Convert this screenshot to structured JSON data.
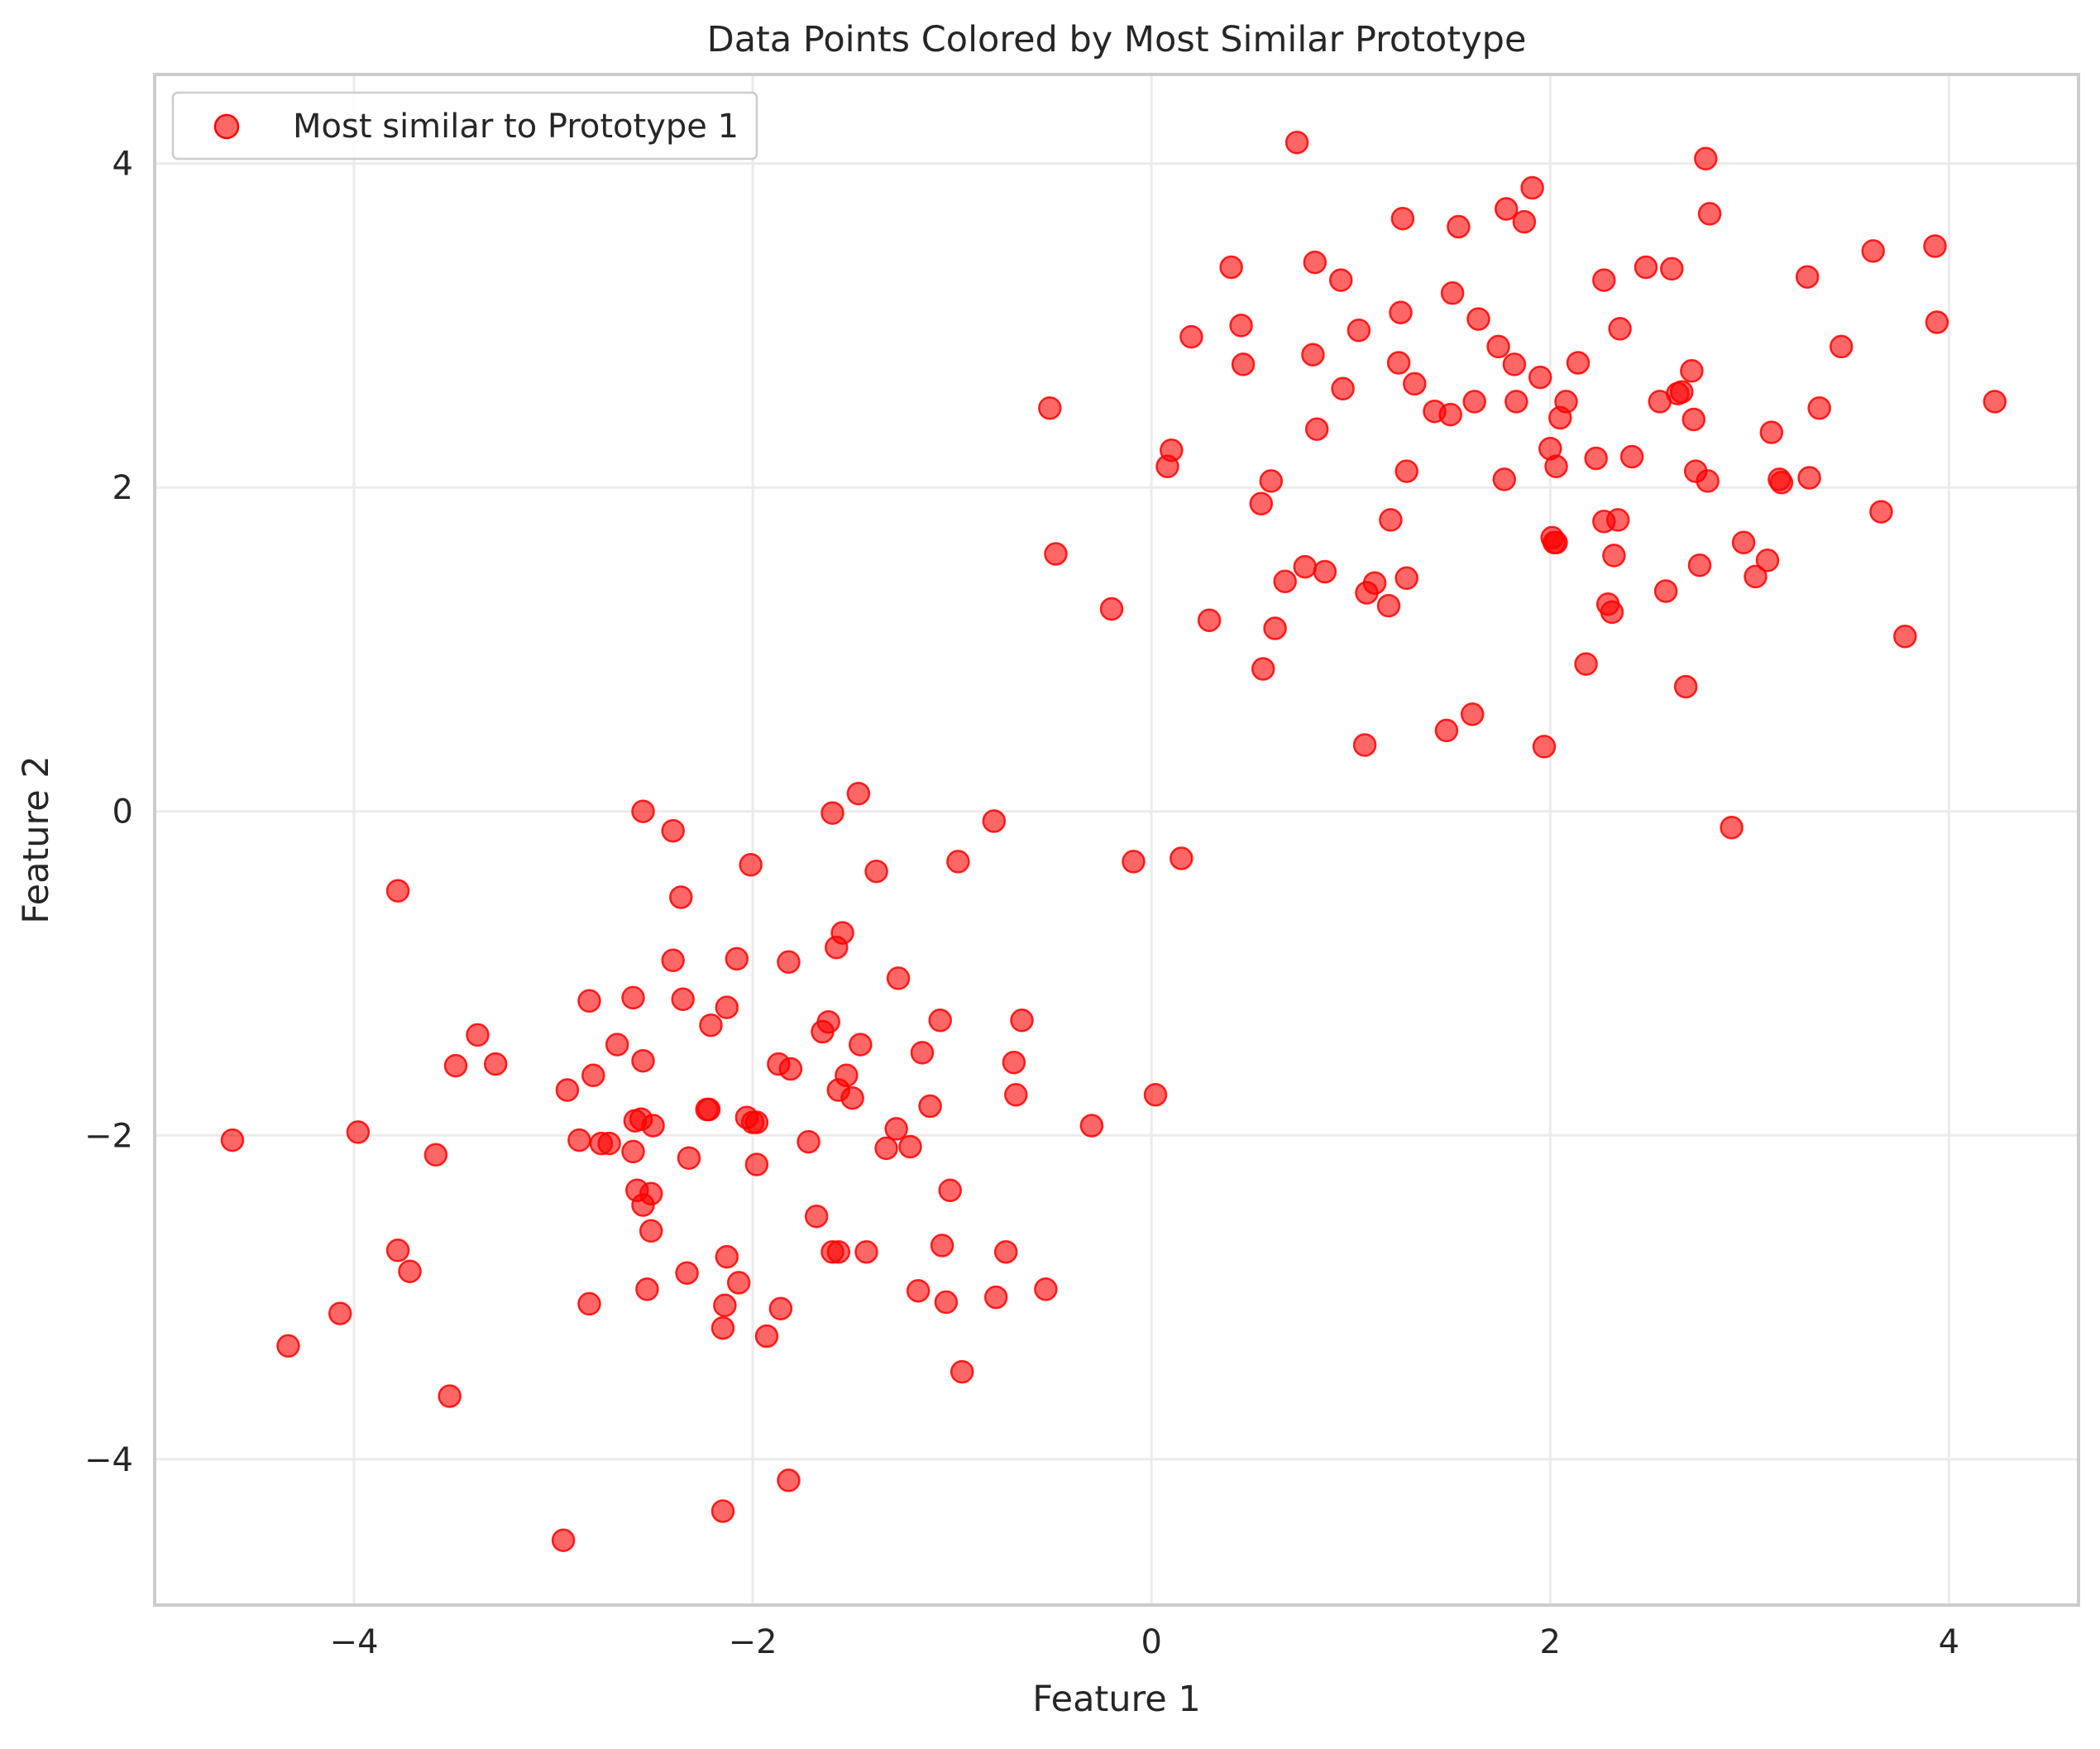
{
  "chart_data": {
    "type": "scatter",
    "title": "Data Points Colored by Most Similar Prototype",
    "xlabel": "Feature 1",
    "ylabel": "Feature 2",
    "xlim": [
      -5.0,
      4.65
    ],
    "ylim": [
      -4.9,
      4.55
    ],
    "xticks": [
      -4,
      -2,
      0,
      2,
      4
    ],
    "yticks": [
      -4,
      -2,
      0,
      2,
      4
    ],
    "grid": true,
    "legend_position": "top-left",
    "series": [
      {
        "name": "Most similar to Prototype 1",
        "color": "#ff0000",
        "points": [
          [
            -4.61,
            -2.03
          ],
          [
            -4.33,
            -3.3
          ],
          [
            -4.07,
            -3.1
          ],
          [
            -3.98,
            -1.98
          ],
          [
            -3.78,
            -0.49
          ],
          [
            -3.78,
            -2.71
          ],
          [
            -3.72,
            -2.84
          ],
          [
            -3.59,
            -2.12
          ],
          [
            -3.52,
            -3.61
          ],
          [
            -3.49,
            -1.57
          ],
          [
            -3.38,
            -1.38
          ],
          [
            -3.29,
            -1.56
          ],
          [
            -2.95,
            -4.5
          ],
          [
            -2.93,
            -1.72
          ],
          [
            -2.87,
            -2.03
          ],
          [
            -2.82,
            -1.17
          ],
          [
            -2.82,
            -3.04
          ],
          [
            -2.8,
            -1.63
          ],
          [
            -2.76,
            -2.05
          ],
          [
            -2.72,
            -2.05
          ],
          [
            -2.68,
            -1.44
          ],
          [
            -2.6,
            -1.15
          ],
          [
            -2.6,
            -2.1
          ],
          [
            -2.59,
            -1.91
          ],
          [
            -2.58,
            -2.34
          ],
          [
            -2.56,
            -1.9
          ],
          [
            -2.55,
            -2.43
          ],
          [
            -2.55,
            -1.54
          ],
          [
            -2.55,
            0.0
          ],
          [
            -2.53,
            -2.95
          ],
          [
            -2.51,
            -2.36
          ],
          [
            -2.51,
            -2.59
          ],
          [
            -2.5,
            -1.94
          ],
          [
            -2.4,
            -0.12
          ],
          [
            -2.4,
            -0.92
          ],
          [
            -2.36,
            -0.53
          ],
          [
            -2.35,
            -1.16
          ],
          [
            -2.33,
            -2.85
          ],
          [
            -2.32,
            -2.14
          ],
          [
            -2.23,
            -1.84
          ],
          [
            -2.22,
            -1.84
          ],
          [
            -2.21,
            -1.32
          ],
          [
            -2.15,
            -4.32
          ],
          [
            -2.15,
            -3.19
          ],
          [
            -2.14,
            -3.05
          ],
          [
            -2.13,
            -1.21
          ],
          [
            -2.13,
            -2.75
          ],
          [
            -2.08,
            -0.91
          ],
          [
            -2.07,
            -2.91
          ],
          [
            -2.03,
            -1.89
          ],
          [
            -2.01,
            -0.33
          ],
          [
            -2.0,
            -1.92
          ],
          [
            -1.98,
            -1.92
          ],
          [
            -1.98,
            -2.18
          ],
          [
            -1.93,
            -3.24
          ],
          [
            -1.87,
            -1.56
          ],
          [
            -1.86,
            -3.07
          ],
          [
            -1.82,
            -4.13
          ],
          [
            -1.82,
            -0.93
          ],
          [
            -1.81,
            -1.59
          ],
          [
            -1.72,
            -2.04
          ],
          [
            -1.68,
            -2.5
          ],
          [
            -1.65,
            -1.36
          ],
          [
            -1.62,
            -1.3
          ],
          [
            -1.6,
            -2.72
          ],
          [
            -1.6,
            -0.01
          ],
          [
            -1.58,
            -0.84
          ],
          [
            -1.57,
            -1.72
          ],
          [
            -1.57,
            -2.72
          ],
          [
            -1.55,
            -0.75
          ],
          [
            -1.53,
            -1.63
          ],
          [
            -1.5,
            -1.77
          ],
          [
            -1.47,
            0.11
          ],
          [
            -1.46,
            -1.44
          ],
          [
            -1.43,
            -2.72
          ],
          [
            -1.38,
            -0.37
          ],
          [
            -1.33,
            -2.08
          ],
          [
            -1.28,
            -1.96
          ],
          [
            -1.27,
            -1.03
          ],
          [
            -1.21,
            -2.07
          ],
          [
            -1.17,
            -2.96
          ],
          [
            -1.15,
            -1.49
          ],
          [
            -1.11,
            -1.82
          ],
          [
            -1.06,
            -1.29
          ],
          [
            -1.05,
            -2.68
          ],
          [
            -1.03,
            -3.03
          ],
          [
            -1.01,
            -2.34
          ],
          [
            -0.97,
            -0.31
          ],
          [
            -0.95,
            -3.46
          ],
          [
            -0.79,
            -0.06
          ],
          [
            -0.78,
            -3.0
          ],
          [
            -0.73,
            -2.72
          ],
          [
            -0.69,
            -1.55
          ],
          [
            -0.68,
            -1.75
          ],
          [
            -0.65,
            -1.29
          ],
          [
            -0.53,
            -2.95
          ],
          [
            -0.3,
            -1.94
          ],
          [
            -0.09,
            -0.31
          ],
          [
            0.02,
            -1.75
          ],
          [
            0.15,
            -0.29
          ],
          [
            -0.51,
            2.49
          ],
          [
            -0.48,
            1.59
          ],
          [
            -0.2,
            1.25
          ],
          [
            0.08,
            2.13
          ],
          [
            0.1,
            2.23
          ],
          [
            0.2,
            2.93
          ],
          [
            0.29,
            1.18
          ],
          [
            0.4,
            3.36
          ],
          [
            0.45,
            3.0
          ],
          [
            0.46,
            2.76
          ],
          [
            0.55,
            1.9
          ],
          [
            0.56,
            0.88
          ],
          [
            0.6,
            2.04
          ],
          [
            0.62,
            1.13
          ],
          [
            0.67,
            1.42
          ],
          [
            0.73,
            4.13
          ],
          [
            0.77,
            1.51
          ],
          [
            0.81,
            2.82
          ],
          [
            0.82,
            3.39
          ],
          [
            0.83,
            2.36
          ],
          [
            0.87,
            1.48
          ],
          [
            0.95,
            3.28
          ],
          [
            0.96,
            2.61
          ],
          [
            1.04,
            2.97
          ],
          [
            1.07,
            0.41
          ],
          [
            1.08,
            1.35
          ],
          [
            1.12,
            1.41
          ],
          [
            1.19,
            1.27
          ],
          [
            1.2,
            1.8
          ],
          [
            1.24,
            2.77
          ],
          [
            1.25,
            3.08
          ],
          [
            1.26,
            3.66
          ],
          [
            1.28,
            2.1
          ],
          [
            1.28,
            1.44
          ],
          [
            1.32,
            2.64
          ],
          [
            1.42,
            2.47
          ],
          [
            1.48,
            0.5
          ],
          [
            1.5,
            2.45
          ],
          [
            1.51,
            3.2
          ],
          [
            1.54,
            3.61
          ],
          [
            1.61,
            0.6
          ],
          [
            1.62,
            2.53
          ],
          [
            1.64,
            3.04
          ],
          [
            1.74,
            2.87
          ],
          [
            1.77,
            2.05
          ],
          [
            1.78,
            3.72
          ],
          [
            1.82,
            2.76
          ],
          [
            1.83,
            2.53
          ],
          [
            1.87,
            3.64
          ],
          [
            1.91,
            3.85
          ],
          [
            1.95,
            2.68
          ],
          [
            1.97,
            0.4
          ],
          [
            2.0,
            2.24
          ],
          [
            2.01,
            1.69
          ],
          [
            2.02,
            1.66
          ],
          [
            2.03,
            1.66
          ],
          [
            2.03,
            2.13
          ],
          [
            2.05,
            2.43
          ],
          [
            2.08,
            2.53
          ],
          [
            2.14,
            2.77
          ],
          [
            2.18,
            0.91
          ],
          [
            2.23,
            2.18
          ],
          [
            2.27,
            3.28
          ],
          [
            2.27,
            1.79
          ],
          [
            2.29,
            1.28
          ],
          [
            2.31,
            1.23
          ],
          [
            2.32,
            1.58
          ],
          [
            2.34,
            1.8
          ],
          [
            2.35,
            2.98
          ],
          [
            2.41,
            2.19
          ],
          [
            2.48,
            3.36
          ],
          [
            2.55,
            2.53
          ],
          [
            2.58,
            1.36
          ],
          [
            2.61,
            3.35
          ],
          [
            2.64,
            2.58
          ],
          [
            2.66,
            2.59
          ],
          [
            2.68,
            0.77
          ],
          [
            2.71,
            2.72
          ],
          [
            2.72,
            2.42
          ],
          [
            2.73,
            2.1
          ],
          [
            2.75,
            1.52
          ],
          [
            2.78,
            4.03
          ],
          [
            2.79,
            2.04
          ],
          [
            2.8,
            3.69
          ],
          [
            2.91,
            -0.1
          ],
          [
            2.97,
            1.66
          ],
          [
            3.03,
            1.45
          ],
          [
            3.09,
            1.55
          ],
          [
            3.11,
            2.34
          ],
          [
            3.15,
            2.05
          ],
          [
            3.16,
            2.03
          ],
          [
            3.29,
            3.3
          ],
          [
            3.3,
            2.06
          ],
          [
            3.35,
            2.49
          ],
          [
            3.46,
            2.87
          ],
          [
            3.62,
            3.46
          ],
          [
            3.66,
            1.85
          ],
          [
            3.78,
            1.08
          ],
          [
            3.93,
            3.49
          ],
          [
            3.94,
            3.02
          ],
          [
            4.23,
            2.53
          ]
        ]
      }
    ]
  }
}
